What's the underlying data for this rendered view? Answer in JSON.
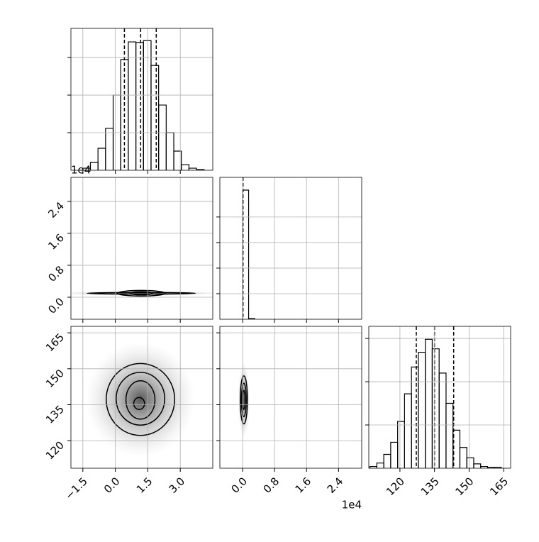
{
  "chart_data": [
    {
      "type": "histogram",
      "xlim": [
        -2.05,
        4.5
      ],
      "xticks": [
        -1.5,
        0,
        1.5,
        3
      ],
      "show_xticklabels": false,
      "ylim": [
        0,
        755
      ],
      "yticks": [
        200,
        400,
        600
      ],
      "show_yticklabels": false,
      "bins": [
        -1.5,
        -1.15,
        -0.8,
        -0.45,
        -0.1,
        0.25,
        0.6,
        0.95,
        1.3,
        1.65,
        2.0,
        2.35,
        2.7,
        3.05,
        3.4,
        3.75,
        4.1
      ],
      "counts": [
        11,
        42,
        117,
        223,
        400,
        589,
        683,
        680,
        690,
        558,
        347,
        200,
        102,
        30,
        11,
        4
      ],
      "quantiles": [
        0.42,
        1.17,
        1.89
      ],
      "grid": true,
      "color": "#000000"
    },
    {
      "type": "contour",
      "xlim": [
        -2.05,
        4.5
      ],
      "xticks": [
        -1.5,
        0,
        1.5,
        3
      ],
      "show_xticklabels": false,
      "ylim": [
        -0.55,
        3.0
      ],
      "yticks": [
        {
          "value": 0,
          "label": "0.0"
        },
        0.8,
        1.6,
        2.4
      ],
      "show_yticklabels": true,
      "y_offset_label": "1e4",
      "contours": [
        {
          "cx": 1.2,
          "cy": 0.1,
          "rx": 2.5,
          "ry": 0.02
        },
        {
          "cx": 1.2,
          "cy": 0.1,
          "rx": 1.1,
          "ry": 0.07
        },
        {
          "cx": 1.2,
          "cy": 0.1,
          "rx": 0.5,
          "ry": 0.04
        }
      ],
      "grid": true,
      "color": "#000000"
    },
    {
      "type": "histogram",
      "xlim": [
        -0.57,
        2.98
      ],
      "xticks": [
        {
          "value": 0,
          "label": "0.0"
        },
        0.8,
        1.6,
        2.4
      ],
      "show_xticklabels": false,
      "ylim": [
        0,
        11100
      ],
      "yticks": [
        2000,
        4000,
        6000,
        8000
      ],
      "show_yticklabels": false,
      "bins": [
        0,
        0.15,
        0.3
      ],
      "counts": [
        10100,
        60
      ],
      "quantiles": [
        0.01
      ],
      "grid": true,
      "color": "#000000"
    },
    {
      "type": "contour",
      "xlim": [
        -2.05,
        4.5
      ],
      "xticks": [
        {
          "value": -1.5,
          "label": "−1.5"
        },
        {
          "value": 0,
          "label": "0.0"
        },
        1.5,
        {
          "value": 3,
          "label": "3.0"
        }
      ],
      "show_xticklabels": true,
      "ylim": [
        108.5,
        167.7
      ],
      "yticks": [
        120,
        135,
        150,
        165
      ],
      "show_yticklabels": true,
      "contours": [
        {
          "cx": 1.16,
          "cy": 137.2,
          "rx": 1.58,
          "ry": 15
        },
        {
          "cx": 1.16,
          "cy": 137.5,
          "rx": 1.12,
          "ry": 11
        },
        {
          "cx": 1.16,
          "cy": 137,
          "rx": 0.67,
          "ry": 8
        },
        {
          "cx": 1.1,
          "cy": 135.5,
          "rx": 0.25,
          "ry": 2.5
        }
      ],
      "grid": true,
      "color": "#000000"
    },
    {
      "type": "contour",
      "xlim": [
        -0.57,
        2.98
      ],
      "xticks": [
        {
          "value": 0,
          "label": "0.0"
        },
        0.8,
        1.6,
        2.4
      ],
      "show_xticklabels": true,
      "x_offset_label": "1e4",
      "ylim": [
        108.5,
        167.7
      ],
      "yticks": [
        120,
        135,
        150,
        165
      ],
      "show_yticklabels": false,
      "contours": [
        {
          "cx": 0.03,
          "cy": 137,
          "rx": 0.09,
          "ry": 10
        },
        {
          "cx": 0.03,
          "cy": 137,
          "rx": 0.06,
          "ry": 7
        },
        {
          "cx": 0.03,
          "cy": 137,
          "rx": 0.03,
          "ry": 4
        }
      ],
      "grid": true,
      "color": "#000000"
    },
    {
      "type": "histogram",
      "xlim": [
        106.5,
        168
      ],
      "xticks": [
        120,
        135,
        150,
        165
      ],
      "show_xticklabels": true,
      "ylim": [
        0,
        164
      ],
      "yticks": [
        50,
        100,
        150
      ],
      "show_yticklabels": false,
      "bins": [
        107,
        110,
        113,
        116,
        119,
        122,
        125,
        128,
        131,
        134,
        137,
        140,
        143,
        146,
        149,
        152,
        155,
        158,
        161,
        164
      ],
      "counts": [
        2,
        6,
        16,
        30,
        54,
        86,
        117,
        134,
        149,
        138,
        110,
        75,
        44,
        24,
        12,
        5,
        2,
        1,
        1
      ],
      "quantiles": [
        127.1,
        135,
        143.3
      ],
      "grid": true,
      "color": "#000000"
    }
  ]
}
